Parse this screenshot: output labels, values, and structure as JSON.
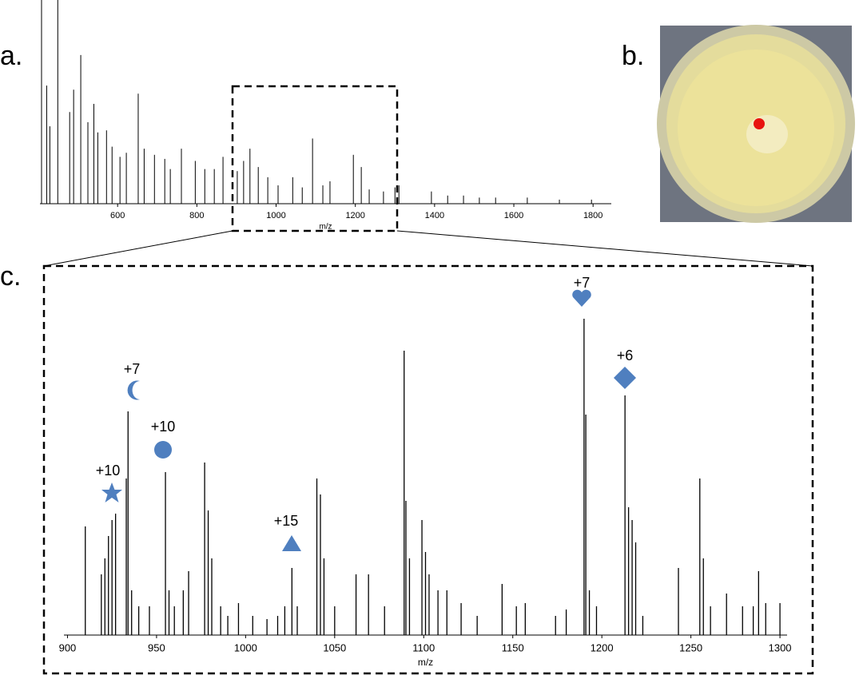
{
  "panel_labels": [
    "a.",
    "b.",
    "c."
  ],
  "chart_data": [
    {
      "type": "spectrum",
      "xlabel": "m/z",
      "xlim": [
        404,
        1846
      ],
      "xticks": [
        600,
        800,
        1000,
        1200,
        1400,
        1600,
        1800
      ],
      "ylim": [
        0,
        100
      ],
      "color": "#000000",
      "x": [
        408,
        421,
        429,
        449,
        479,
        489,
        507,
        525,
        540,
        550,
        572,
        586,
        606,
        622,
        652,
        667,
        693,
        719,
        733,
        761,
        796,
        820,
        844,
        866,
        902,
        918,
        934,
        955,
        979,
        1005,
        1042,
        1066,
        1092,
        1118,
        1136,
        1195,
        1215,
        1235,
        1271,
        1300,
        1310,
        1392,
        1433,
        1473,
        1513,
        1554,
        1634,
        1715,
        1796
      ],
      "values": [
        100,
        58,
        38,
        100,
        45,
        56,
        73,
        40,
        49,
        35,
        36,
        28,
        23,
        25,
        54,
        27,
        24,
        22,
        17,
        27,
        21,
        17,
        17,
        23,
        16,
        21,
        27,
        18,
        13,
        9,
        13,
        8,
        32,
        9,
        11,
        24,
        18,
        7,
        6,
        8,
        9,
        6,
        4,
        4,
        3,
        3,
        3,
        2,
        2
      ]
    },
    {
      "type": "spectrum",
      "xlabel": "m/z",
      "xlim": [
        898,
        1304
      ],
      "xticks": [
        900,
        950,
        1000,
        1050,
        1100,
        1150,
        1200,
        1250,
        1300
      ],
      "ylim": [
        0,
        100
      ],
      "color": "#000000",
      "x": [
        910,
        919,
        921,
        923,
        925,
        927,
        933,
        934,
        936,
        940,
        946,
        955,
        957,
        960,
        965,
        968,
        977,
        979,
        981,
        986,
        990,
        996,
        1004,
        1012,
        1018,
        1022,
        1026,
        1029,
        1040,
        1042,
        1044,
        1050,
        1062,
        1069,
        1078,
        1089,
        1090,
        1092,
        1099,
        1101,
        1103,
        1108,
        1113,
        1121,
        1130,
        1144,
        1152,
        1157,
        1174,
        1180,
        1190,
        1191,
        1193,
        1197,
        1213,
        1215,
        1217,
        1219,
        1223,
        1243,
        1255,
        1257,
        1261,
        1270,
        1279,
        1285,
        1288,
        1292,
        1300
      ],
      "values": [
        34,
        19,
        24,
        31,
        36,
        38,
        49,
        70,
        14,
        9,
        9,
        51,
        14,
        9,
        14,
        20,
        54,
        39,
        24,
        9,
        6,
        10,
        6,
        5,
        6,
        9,
        21,
        9,
        49,
        44,
        24,
        9,
        19,
        19,
        9,
        89,
        42,
        24,
        36,
        26,
        19,
        14,
        14,
        10,
        6,
        16,
        9,
        10,
        6,
        8,
        99,
        69,
        14,
        9,
        75,
        40,
        36,
        29,
        6,
        21,
        49,
        24,
        9,
        13,
        9,
        9,
        20,
        10,
        10
      ],
      "annotations": [
        "+10",
        "+7",
        "+10",
        "+15",
        "+7",
        "+6"
      ]
    }
  ]
}
